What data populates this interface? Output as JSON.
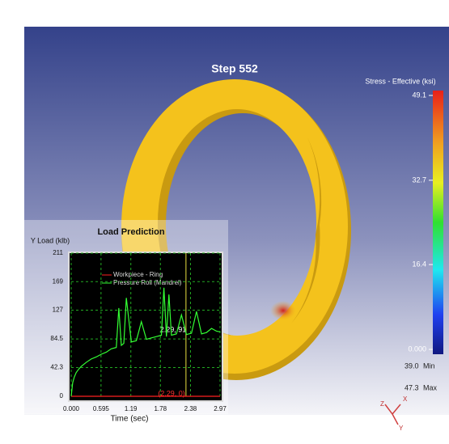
{
  "viewport": {
    "title": "Step 552",
    "axes_triad": [
      "Z",
      "X",
      "Y"
    ]
  },
  "color_legend": {
    "title": "Stress - Effective (ksi)",
    "lim": [
      0,
      49.1
    ],
    "ticks": [
      49.1,
      32.7,
      16.4,
      {
        "value": 0,
        "label": "0.000"
      }
    ],
    "min": {
      "value": "39.0",
      "label": "Min"
    },
    "max": {
      "value": "47.3",
      "label": "Max"
    }
  },
  "chart_data": {
    "type": "line",
    "title": "Load Prediction",
    "y_label": "Y Load (klb)",
    "x_label": "Time (sec)",
    "x": [
      0,
      0.03,
      0.06,
      0.1,
      0.15,
      0.2,
      0.3,
      0.4,
      0.5,
      0.6,
      0.7,
      0.8,
      0.9,
      0.95,
      1.0,
      1.05,
      1.1,
      1.2,
      1.3,
      1.4,
      1.5,
      1.6,
      1.7,
      1.8,
      1.85,
      1.9,
      1.95,
      2.0,
      2.1,
      2.2,
      2.3,
      2.4,
      2.5,
      2.6,
      2.7,
      2.8,
      2.9,
      2.97
    ],
    "series": [
      {
        "name": "Workpiece - Ring",
        "color": "#ff2020",
        "values": [
          0,
          0,
          0,
          0,
          0,
          0,
          0,
          0,
          0,
          0,
          0,
          0,
          0,
          0,
          0,
          0,
          0,
          0,
          0,
          0,
          0,
          0,
          0,
          0,
          0,
          0,
          0,
          0,
          0,
          0,
          0,
          0,
          0,
          0,
          0,
          0,
          0,
          0
        ]
      },
      {
        "name": "Pressure Roll (Mandrel)",
        "color": "#33ff33",
        "values": [
          0,
          20,
          28,
          35,
          40,
          44,
          50,
          55,
          58,
          62,
          65,
          70,
          72,
          130,
          75,
          78,
          145,
          80,
          82,
          110,
          84,
          86,
          88,
          90,
          160,
          88,
          150,
          90,
          92,
          120,
          91,
          93,
          125,
          92,
          94,
          100,
          96,
          95
        ]
      }
    ],
    "xlim": [
      0,
      2.97
    ],
    "ylim": [
      0,
      211
    ],
    "xticks": [
      {
        "value": 0,
        "label": "0.000"
      },
      0.595,
      1.19,
      1.78,
      2.38,
      2.97
    ],
    "yticks": [
      0,
      42.3,
      84.5,
      127,
      169,
      211
    ],
    "grid": true,
    "cursor_x": 2.29,
    "annotations": [
      "2.29, 91",
      "(2.29, 0)"
    ]
  }
}
